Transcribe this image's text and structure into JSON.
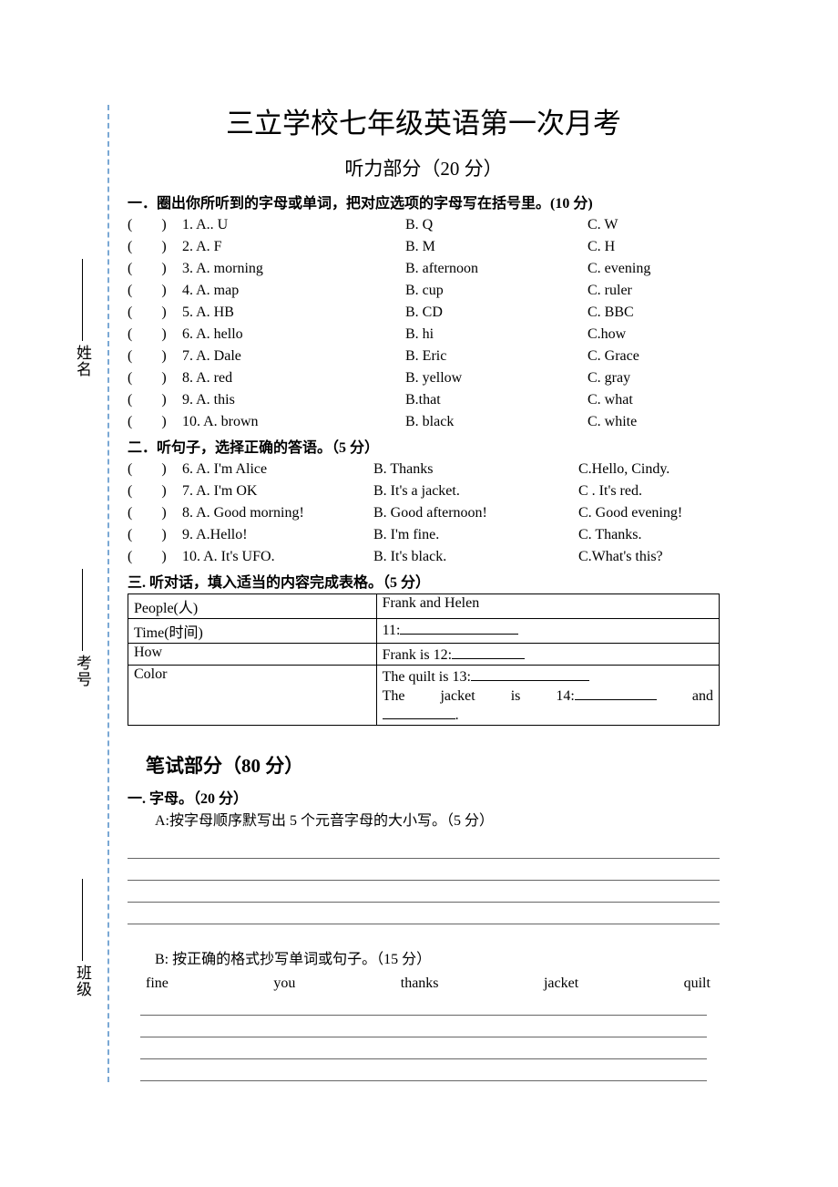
{
  "title": "三立学校七年级英语第一次月考",
  "listening_heading": "听力部分（20 分）",
  "section1_heading": "一．圈出你所听到的字母或单词，把对应选项的字母写在括号里。(10 分)",
  "section1_items": [
    {
      "num": "1",
      "a": "A.. U",
      "b": "B. Q",
      "c": "C. W"
    },
    {
      "num": "2",
      "a": "A. F",
      "b": "B. M",
      "c": "C. H"
    },
    {
      "num": "3",
      "a": "A. morning",
      "b": "B. afternoon",
      "c": "C. evening"
    },
    {
      "num": "4",
      "a": "A. map",
      "b": "B. cup",
      "c": "C. ruler"
    },
    {
      "num": "5",
      "a": "A. HB",
      "b": "B. CD",
      "c": "C. BBC"
    },
    {
      "num": "6",
      "a": "A. hello",
      "b": "B. hi",
      "c": "C.how"
    },
    {
      "num": "7",
      "a": "A. Dale",
      "b": "B. Eric",
      "c": "C. Grace"
    },
    {
      "num": "8",
      "a": "A. red",
      "b": "B. yellow",
      "c": "C. gray"
    },
    {
      "num": "9",
      "a": "A. this",
      "b": "B.that",
      "c": "C. what"
    },
    {
      "num": "10",
      "a": "A. brown",
      "b": "B. black",
      "c": "C. white"
    }
  ],
  "section2_heading": "二．听句子，选择正确的答语。（5 分）",
  "section2_items": [
    {
      "num": "6",
      "a": "A. I'm Alice",
      "b": "B. Thanks",
      "c": "C.Hello, Cindy."
    },
    {
      "num": "7",
      "a": "A. I'm OK",
      "b": "B. It's a jacket.",
      "c": "C . It's red."
    },
    {
      "num": "8",
      "a": "A. Good morning!",
      "b": "B. Good afternoon!",
      "c": "C. Good evening!"
    },
    {
      "num": "9",
      "a": "A.Hello!",
      "b": "B. I'm fine.",
      "c": "C. Thanks."
    },
    {
      "num": "10",
      "a": "A. It's UFO.",
      "b": "B. It's black.",
      "c": "C.What's this?"
    }
  ],
  "section3_heading": "三. 听对话，填入适当的内容完成表格。（5 分）",
  "table": {
    "rows": [
      {
        "left": "People(人)",
        "right": "Frank and Helen"
      },
      {
        "left": "Time(时间)",
        "right_prefix": "11:"
      },
      {
        "left": "How",
        "right_prefix": "Frank is 12:"
      },
      {
        "left": "Color",
        "right_line1_prefix": "The quilt is 13:",
        "right_line2": "The　jacket　is　14:__________　and _________."
      }
    ]
  },
  "written_heading": "笔试部分（80 分）",
  "letters_heading": "一. 字母。（20 分）",
  "letters_a_instruction": "A:按字母顺序默写出 5 个元音字母的大小写。（5 分）",
  "letters_b_instruction": "B:  按正确的格式抄写单词或句子。（15 分）",
  "copy_words": [
    "fine",
    "you",
    "thanks",
    "jacket",
    "quilt"
  ],
  "binding_labels": {
    "name": "姓名",
    "examno": "考号",
    "class": "班级"
  },
  "styling": {
    "page_bg": "#ffffff",
    "text_color": "#000000",
    "binding_dash_color": "#7aa8d4",
    "title_fontsize": 31,
    "subtitle_fontsize": 21,
    "body_fontsize": 16,
    "font_family": "SimSun"
  }
}
